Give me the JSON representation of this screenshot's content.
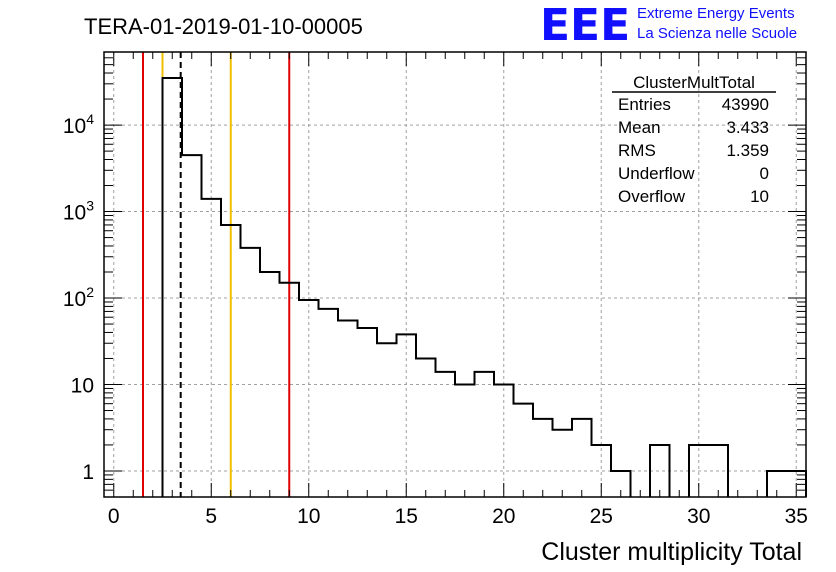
{
  "run_title": "TERA-01-2019-01-10-00005",
  "logo": {
    "text": "EEE",
    "line1": "Extreme Energy Events",
    "line2": "La Scienza nelle Scuole",
    "color": "#1010ff"
  },
  "stats": {
    "name": "ClusterMultTotal",
    "rows": [
      {
        "label": "Entries",
        "value": "43990"
      },
      {
        "label": "Mean",
        "value": "3.433"
      },
      {
        "label": "RMS",
        "value": "1.359"
      },
      {
        "label": "Underflow",
        "value": "0"
      },
      {
        "label": "Overflow",
        "value": "10"
      }
    ]
  },
  "chart_data": {
    "type": "histogram",
    "xlabel": "Cluster multiplicity Total",
    "ylabel": "",
    "xlim": [
      -0.5,
      35.5
    ],
    "ylim": [
      0.5,
      70000
    ],
    "y_scale": "log",
    "grid": true,
    "bin_width": 1,
    "bin_centers": [
      0,
      1,
      2,
      3,
      4,
      5,
      6,
      7,
      8,
      9,
      10,
      11,
      12,
      13,
      14,
      15,
      16,
      17,
      18,
      19,
      20,
      21,
      22,
      23,
      24,
      25,
      26,
      27,
      28,
      29,
      30,
      31,
      32,
      33,
      34,
      35
    ],
    "counts": [
      0,
      0,
      0,
      35000,
      4500,
      1400,
      700,
      380,
      200,
      150,
      95,
      75,
      55,
      45,
      30,
      38,
      20,
      14,
      10,
      14,
      10,
      6,
      4,
      3,
      4,
      2,
      1,
      0,
      2,
      0,
      2,
      2,
      0,
      0,
      1,
      1
    ],
    "x_ticks": [
      0,
      5,
      10,
      15,
      20,
      25,
      30,
      35
    ],
    "x_tick_labels": [
      "0",
      "5",
      "10",
      "15",
      "20",
      "25",
      "30",
      "35"
    ],
    "y_ticks": [
      1,
      10,
      100,
      1000,
      10000
    ],
    "y_tick_labels": [
      {
        "base": "1",
        "exp": ""
      },
      {
        "base": "10",
        "exp": ""
      },
      {
        "base": "10",
        "exp": "2"
      },
      {
        "base": "10",
        "exp": "3"
      },
      {
        "base": "10",
        "exp": "4"
      }
    ],
    "vertical_lines": [
      {
        "x": 1.5,
        "color": "#e00000",
        "style": "solid"
      },
      {
        "x": 2.5,
        "color": "#f0c000",
        "style": "solid"
      },
      {
        "x": 3.433,
        "color": "#000000",
        "style": "dashed"
      },
      {
        "x": 6.0,
        "color": "#f0c000",
        "style": "solid"
      },
      {
        "x": 9.0,
        "color": "#e00000",
        "style": "solid"
      }
    ],
    "line_color": "#000000",
    "grid_color": "#a0a0a0"
  }
}
